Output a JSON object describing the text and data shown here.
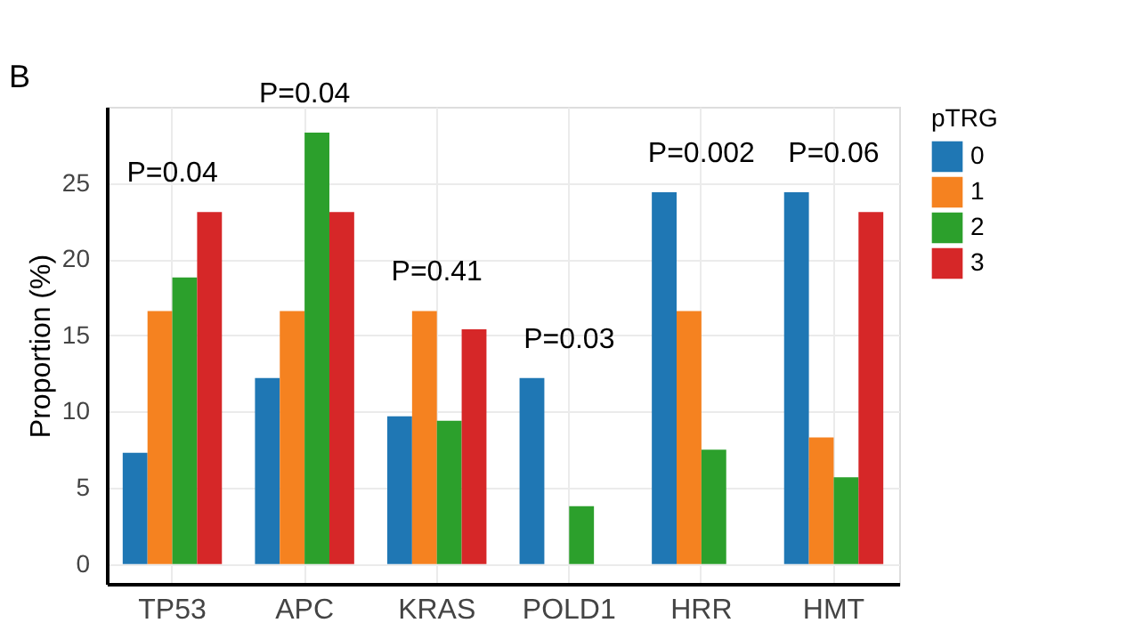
{
  "chart_data": {
    "type": "bar",
    "ylabel": "Proportion (%)",
    "legend_title": "pTRG",
    "categories": [
      "TP53",
      "APC",
      "KRAS",
      "POLD1",
      "HRR",
      "HMT"
    ],
    "series": [
      {
        "name": "0",
        "color": "#1f77b4",
        "values": [
          7.3,
          12.2,
          9.7,
          12.2,
          24.4,
          24.4
        ]
      },
      {
        "name": "1",
        "color": "#f58220",
        "values": [
          16.6,
          16.6,
          16.6,
          0,
          16.6,
          8.3
        ]
      },
      {
        "name": "2",
        "color": "#2ca02c",
        "values": [
          18.8,
          28.3,
          9.4,
          3.8,
          7.5,
          5.7
        ]
      },
      {
        "name": "3",
        "color": "#d62728",
        "values": [
          23.1,
          23.1,
          15.4,
          0,
          0,
          23.1
        ]
      }
    ],
    "ylim": [
      -1.3,
      30
    ],
    "yticks": [
      0,
      5,
      10,
      15,
      20,
      25
    ],
    "grid": true,
    "legend": "top right",
    "annotations": [
      "B",
      "P=0.04",
      "P=0.04",
      "P=0.41",
      "P=0.03",
      "P=0.002",
      "P=0.06"
    ]
  }
}
